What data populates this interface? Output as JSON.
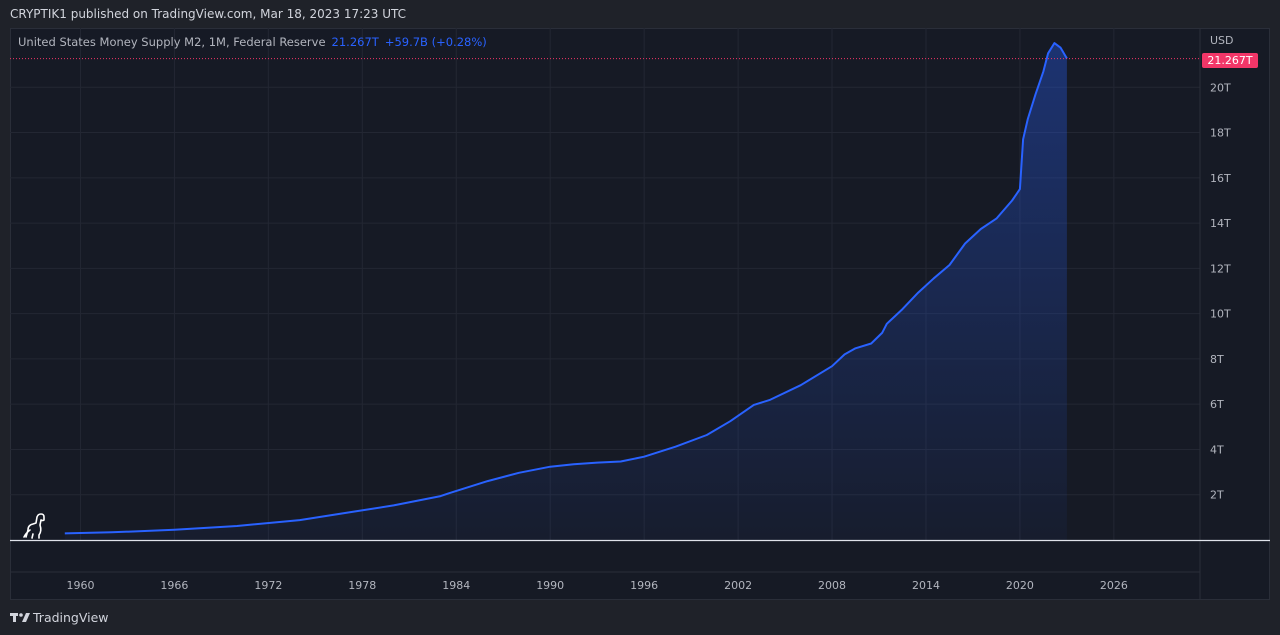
{
  "header": {
    "publisher_line": "CRYPTIK1 published on TradingView.com, Mar 18, 2023 17:23 UTC"
  },
  "legend": {
    "symbol": "United States Money Supply M2, 1M, Federal Reserve",
    "value": "21.267T",
    "change": "+59.7B (+0.28%)"
  },
  "price_scale": {
    "currency": "USD",
    "last_price_label": "21.267T"
  },
  "footer": {
    "brand": "TradingView"
  },
  "colors": {
    "background": "#161a25",
    "line": "#2962ff",
    "badge": "#f23668"
  },
  "icons": [
    "dino-mascot-icon",
    "tradingview-logo-icon"
  ],
  "chart_data": {
    "type": "area",
    "title": "United States Money Supply M2, 1M, Federal Reserve",
    "xlabel": "",
    "ylabel": "",
    "x_ticks": [
      1960,
      1966,
      1972,
      1978,
      1984,
      1990,
      1996,
      2002,
      2008,
      2014,
      2020,
      2026
    ],
    "y_ticks": [
      2,
      4,
      6,
      8,
      10,
      12,
      14,
      16,
      18,
      20
    ],
    "y_tick_labels": [
      "2T",
      "4T",
      "6T",
      "8T",
      "10T",
      "12T",
      "14T",
      "16T",
      "18T",
      "20T"
    ],
    "xlim": [
      1955.5,
      2031.5
    ],
    "ylim": [
      0,
      22
    ],
    "y_unit": "trillion USD",
    "grid": true,
    "last_value": 21.267,
    "series": [
      {
        "name": "United States Money Supply M2",
        "x": [
          1959.0,
          1962.0,
          1966.0,
          1970.0,
          1974.0,
          1977.0,
          1980.0,
          1983.0,
          1983.5,
          1986.0,
          1988.0,
          1990.0,
          1991.5,
          1993.0,
          1994.5,
          1996.0,
          1998.0,
          2000.0,
          2001.5,
          2003.0,
          2004.0,
          2006.0,
          2008.0,
          2008.8,
          2009.5,
          2010.5,
          2011.2,
          2011.5,
          2012.5,
          2013.5,
          2014.5,
          2015.5,
          2016.5,
          2017.5,
          2018.5,
          2019.5,
          2020.0,
          2020.2,
          2020.5,
          2021.0,
          2021.5,
          2021.8,
          2022.2,
          2022.6,
          2023.0
        ],
        "y": [
          0.29,
          0.34,
          0.45,
          0.62,
          0.88,
          1.2,
          1.53,
          1.94,
          2.06,
          2.6,
          2.97,
          3.24,
          3.35,
          3.42,
          3.47,
          3.68,
          4.12,
          4.64,
          5.25,
          5.97,
          6.18,
          6.84,
          7.68,
          8.2,
          8.47,
          8.68,
          9.15,
          9.55,
          10.2,
          10.93,
          11.56,
          12.15,
          13.1,
          13.74,
          14.2,
          15.0,
          15.5,
          17.7,
          18.6,
          19.7,
          20.7,
          21.5,
          21.95,
          21.75,
          21.27
        ]
      }
    ]
  }
}
